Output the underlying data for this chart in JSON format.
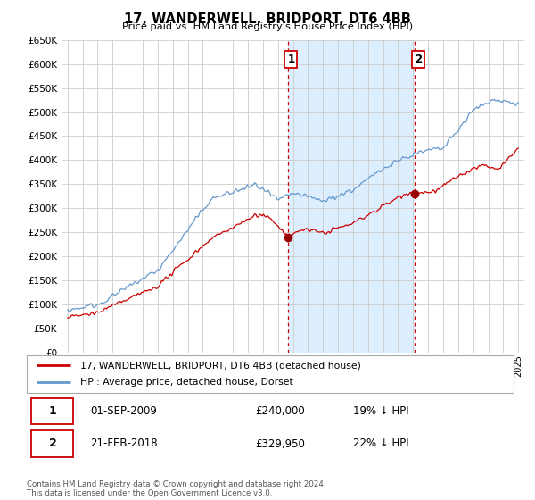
{
  "title": "17, WANDERWELL, BRIDPORT, DT6 4BB",
  "subtitle": "Price paid vs. HM Land Registry's House Price Index (HPI)",
  "ytick_vals": [
    0,
    50000,
    100000,
    150000,
    200000,
    250000,
    300000,
    350000,
    400000,
    450000,
    500000,
    550000,
    600000,
    650000
  ],
  "ylim": [
    0,
    650000
  ],
  "xlim_start": 1994.6,
  "xlim_end": 2025.4,
  "sale1_x": 2009.67,
  "sale1_y": 240000,
  "sale2_x": 2018.13,
  "sale2_y": 329950,
  "legend_entries": [
    "17, WANDERWELL, BRIDPORT, DT6 4BB (detached house)",
    "HPI: Average price, detached house, Dorset"
  ],
  "legend_colors": [
    "#cc0000",
    "#6699cc"
  ],
  "footer": "Contains HM Land Registry data © Crown copyright and database right 2024.\nThis data is licensed under the Open Government Licence v3.0.",
  "hpi_color": "#6699cc",
  "price_color": "#cc0000",
  "vline_color": "#cc0000",
  "shade_color": "#ddeeff",
  "plot_bg": "#ffffff",
  "grid_color": "#cccccc",
  "ann1_date": "01-SEP-2009",
  "ann1_price": "£240,000",
  "ann1_hpi": "19% ↓ HPI",
  "ann2_date": "21-FEB-2018",
  "ann2_price": "£329,950",
  "ann2_hpi": "22% ↓ HPI"
}
